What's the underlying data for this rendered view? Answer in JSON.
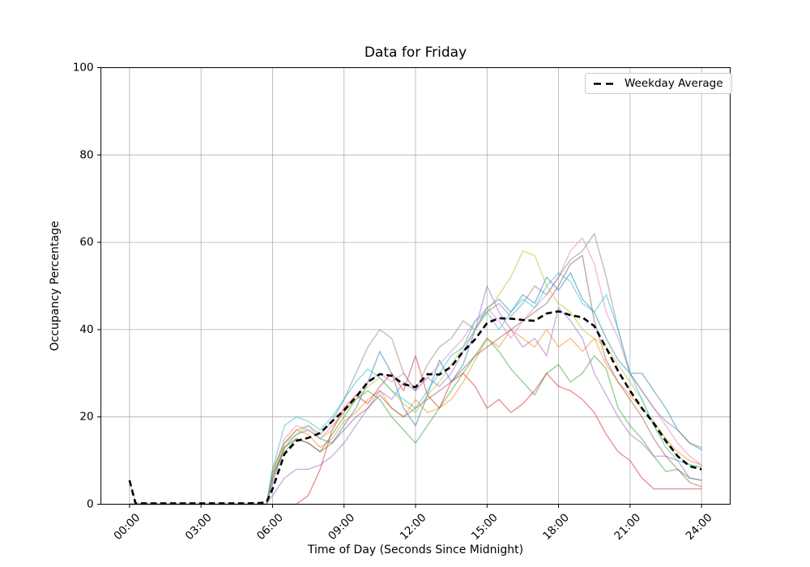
{
  "figure": {
    "background": "#ffffff"
  },
  "chart_data": {
    "type": "line",
    "title": "Data for Friday",
    "xlabel": "Time of Day (Seconds Since Midnight)",
    "ylabel": "Occupancy Percentage",
    "ylim": [
      0,
      100
    ],
    "xlim_hours": [
      -1.2,
      25.2
    ],
    "grid": true,
    "grid_color": "#b0b0b0",
    "spine_color": "#000000",
    "y_ticks": {
      "values": [
        0,
        20,
        40,
        60,
        80,
        100
      ],
      "labels": [
        "0",
        "20",
        "40",
        "60",
        "80",
        "100"
      ]
    },
    "x_ticks": {
      "hours": [
        0,
        3,
        6,
        9,
        12,
        15,
        18,
        21,
        24
      ],
      "labels": [
        "00:00",
        "03:00",
        "06:00",
        "09:00",
        "12:00",
        "15:00",
        "18:00",
        "21:00",
        "24:00"
      ]
    },
    "legend": {
      "label": "Weekday Average",
      "position": "upper right",
      "line_color": "#000000",
      "line_style": "dashed"
    },
    "x_hours": [
      0,
      0.25,
      0.5,
      1,
      1.5,
      2,
      2.5,
      3,
      3.5,
      4,
      4.5,
      5,
      5.5,
      5.75,
      6,
      6.5,
      7,
      7.5,
      8,
      8.5,
      9,
      9.5,
      10,
      10.5,
      11,
      11.5,
      12,
      12.5,
      13,
      13.5,
      14,
      14.5,
      15,
      15.5,
      16,
      16.5,
      17,
      17.5,
      18,
      18.5,
      19,
      19.5,
      20,
      20.5,
      21,
      21.5,
      22,
      22.5,
      23,
      23.5,
      24
    ],
    "series": [
      {
        "name": "blue",
        "color": "#1f77b4",
        "opacity": 0.5,
        "values": [
          0,
          0,
          0,
          0,
          0,
          0,
          0,
          0,
          0,
          0,
          0,
          0,
          0,
          0,
          5,
          13,
          16,
          17,
          15,
          14,
          18,
          22,
          28,
          35,
          30,
          22,
          18,
          25,
          33,
          28,
          32,
          40,
          45,
          47,
          44,
          48,
          46,
          52,
          49,
          53,
          47,
          44,
          38,
          33,
          30,
          30,
          26,
          22,
          17,
          14,
          12.5
        ]
      },
      {
        "name": "orange",
        "color": "#ff7f0e",
        "opacity": 0.5,
        "values": [
          0,
          0,
          0,
          0,
          0,
          0,
          0,
          0,
          0,
          0,
          0,
          0,
          0,
          0,
          6,
          14,
          17,
          16,
          13,
          15,
          19,
          21,
          24,
          26,
          22,
          20,
          24,
          21,
          22,
          24,
          28,
          33,
          38,
          36,
          40,
          38,
          36,
          40,
          36,
          38,
          35,
          38,
          32,
          28,
          25,
          22,
          19,
          15,
          12,
          10,
          9
        ]
      },
      {
        "name": "green",
        "color": "#2ca02c",
        "opacity": 0.5,
        "values": [
          0,
          0,
          0,
          0,
          0,
          0,
          0,
          0,
          0,
          0,
          0,
          0,
          0,
          0,
          7,
          12,
          15,
          14,
          12,
          16,
          20,
          24,
          26,
          24,
          20,
          17,
          14,
          18,
          22,
          26,
          30,
          34,
          38,
          35,
          31,
          28,
          25,
          30,
          32,
          28,
          30,
          34,
          31,
          22,
          18,
          15,
          11,
          7.5,
          8,
          6,
          5.5
        ]
      },
      {
        "name": "red",
        "color": "#d62728",
        "opacity": 0.5,
        "values": [
          0,
          0,
          0,
          0,
          0,
          0,
          0,
          0,
          0,
          0,
          0,
          0,
          0,
          0,
          0,
          0,
          0,
          2,
          8,
          17,
          22,
          25,
          23,
          27,
          30,
          26,
          34,
          25,
          22,
          28,
          30,
          27,
          22,
          24,
          21,
          23,
          26,
          30,
          27,
          26,
          24,
          21,
          16,
          12,
          10,
          6,
          3.5,
          3.5,
          3.5,
          3.5,
          3.5
        ]
      },
      {
        "name": "purple",
        "color": "#9467bd",
        "opacity": 0.5,
        "values": [
          0,
          0,
          0,
          0,
          0,
          0,
          0,
          0,
          0,
          0,
          0,
          0,
          0,
          0,
          2,
          6,
          8,
          8,
          9,
          11,
          14,
          18,
          22,
          26,
          24,
          28,
          26,
          29,
          27,
          30,
          35,
          40,
          50,
          44,
          40,
          36,
          38,
          34,
          45,
          42,
          38,
          30,
          25,
          20,
          16,
          14,
          11,
          11,
          10,
          6,
          5.5
        ]
      },
      {
        "name": "brown",
        "color": "#8c564b",
        "opacity": 0.5,
        "values": [
          0,
          0,
          0,
          0,
          0,
          0,
          0,
          0,
          0,
          0,
          0,
          0,
          0,
          0,
          6,
          13,
          15,
          14,
          12,
          14,
          17,
          20,
          22,
          25,
          22,
          20,
          22,
          24,
          26,
          28,
          31,
          34,
          36,
          38,
          40,
          42,
          44,
          46,
          50,
          55,
          57,
          42,
          33,
          28,
          24,
          20,
          15,
          11,
          8,
          5,
          4
        ]
      },
      {
        "name": "pink",
        "color": "#e377c2",
        "opacity": 0.5,
        "values": [
          5.5,
          0.2,
          0,
          0,
          0,
          0,
          0,
          0,
          0,
          0,
          0,
          0,
          0,
          0,
          7,
          15,
          18,
          17,
          15,
          18,
          21,
          25,
          28,
          30,
          28,
          30,
          26,
          29,
          32,
          35,
          38,
          42,
          45,
          42,
          38,
          42,
          45,
          48,
          52,
          58,
          61,
          55,
          44,
          38,
          30,
          26,
          22,
          18,
          14,
          11,
          9
        ]
      },
      {
        "name": "gray",
        "color": "#7f7f7f",
        "opacity": 0.5,
        "values": [
          0,
          0,
          0,
          0,
          0,
          0,
          0,
          0,
          0,
          0,
          0,
          0,
          0,
          0,
          8,
          14,
          17,
          18,
          16,
          19,
          24,
          30,
          36,
          40,
          38,
          30,
          26,
          32,
          36,
          38,
          42,
          40,
          44,
          46,
          43,
          46,
          50,
          48,
          52,
          56,
          58,
          62,
          52,
          40,
          30,
          26,
          22,
          19,
          17,
          14,
          13
        ]
      },
      {
        "name": "olive",
        "color": "#bcbd22",
        "opacity": 0.5,
        "values": [
          0,
          0,
          0,
          0,
          0,
          0,
          0,
          0,
          0,
          0,
          0,
          0,
          0,
          0,
          7,
          14,
          16,
          18,
          15,
          17,
          21,
          24,
          27,
          29,
          26,
          23,
          21,
          25,
          28,
          32,
          36,
          40,
          44,
          48,
          52,
          58,
          57,
          50,
          46,
          44,
          40,
          38,
          36,
          32,
          28,
          24,
          18,
          14,
          11,
          9,
          8.5
        ]
      },
      {
        "name": "cyan",
        "color": "#17becf",
        "opacity": 0.5,
        "values": [
          0,
          0,
          0,
          0,
          0,
          0,
          0,
          0,
          0,
          0,
          0,
          0,
          0,
          0,
          8,
          18,
          20,
          19,
          17,
          20,
          24,
          28,
          31,
          29,
          26,
          24,
          22,
          26,
          30,
          34,
          36,
          42,
          44,
          40,
          44,
          47,
          45,
          50,
          53,
          51,
          46,
          44,
          48,
          40,
          30,
          24,
          18,
          13,
          10,
          9,
          8.5
        ]
      }
    ],
    "average_series": {
      "name": "Weekday Average",
      "color": "#000000",
      "linestyle": "dashed",
      "linewidth": 2.6,
      "values": [
        5.5,
        0.2,
        0.2,
        0.2,
        0.2,
        0.2,
        0.2,
        0.2,
        0.2,
        0.2,
        0.2,
        0.2,
        0.3,
        0.5,
        3.5,
        11.5,
        14.5,
        15.2,
        16.3,
        19,
        21.5,
        24.5,
        28,
        29.8,
        29.4,
        27.5,
        26.8,
        29.8,
        29.7,
        31.5,
        35,
        37.8,
        41.5,
        42.6,
        42.5,
        42.2,
        42,
        43.7,
        44.2,
        43.3,
        42.8,
        40.8,
        35.8,
        30.5,
        26,
        22,
        18.5,
        14.5,
        11,
        8.7,
        8
      ]
    }
  }
}
